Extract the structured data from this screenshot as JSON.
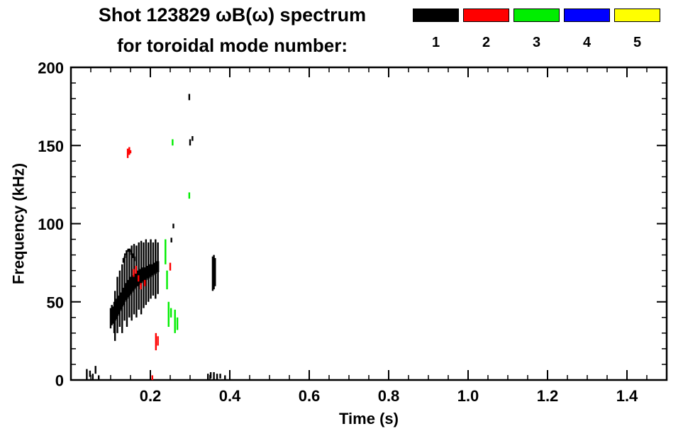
{
  "header": {
    "title_line1": "Shot 123829 ωB(ω) spectrum",
    "title_line2": "for toroidal mode number:"
  },
  "chart_data": {
    "type": "scatter",
    "title": "Shot 123829 ωB(ω) spectrum for toroidal mode number: 1 2 3 4 5",
    "xlabel": "Time (s)",
    "ylabel": "Frequency (kHz)",
    "xlim": [
      0,
      1.5
    ],
    "ylim": [
      0,
      200
    ],
    "xticks": {
      "values": [
        0.2,
        0.4,
        0.6,
        0.8,
        1.0,
        1.2,
        1.4
      ],
      "labels": [
        "0.2",
        "0.4",
        "0.6",
        "0.8",
        "1.0",
        "1.2",
        "1.4"
      ]
    },
    "yticks": {
      "values": [
        0,
        50,
        100,
        150,
        200
      ],
      "labels": [
        "0",
        "50",
        "100",
        "150",
        "200"
      ]
    },
    "x_minor_step": 0.05,
    "y_minor_step": 10,
    "grid": false,
    "background": "#ffffff",
    "axis_color": "#000000",
    "legend": {
      "position": "top-right",
      "entries": [
        {
          "label": "1",
          "color": "#000000"
        },
        {
          "label": "2",
          "color": "#ff0000"
        },
        {
          "label": "3",
          "color": "#00ee00"
        },
        {
          "label": "4",
          "color": "#0000ff"
        },
        {
          "label": "5",
          "color": "#ffff00"
        }
      ]
    },
    "series": [
      {
        "name": "toroidal mode 1",
        "color": "#000000",
        "segments": [
          [
            0.1,
            33,
            46
          ],
          [
            0.103,
            35,
            48
          ],
          [
            0.106,
            36,
            47
          ],
          [
            0.109,
            30,
            50
          ],
          [
            0.112,
            38,
            50
          ],
          [
            0.115,
            39,
            52
          ],
          [
            0.118,
            41,
            53
          ],
          [
            0.121,
            42,
            54
          ],
          [
            0.124,
            44,
            55
          ],
          [
            0.127,
            45,
            56
          ],
          [
            0.13,
            47,
            58
          ],
          [
            0.133,
            48,
            59
          ],
          [
            0.136,
            50,
            61
          ],
          [
            0.139,
            51,
            62
          ],
          [
            0.142,
            52,
            63
          ],
          [
            0.145,
            53,
            64
          ],
          [
            0.148,
            54,
            65
          ],
          [
            0.151,
            55,
            66
          ],
          [
            0.154,
            56,
            66
          ],
          [
            0.157,
            57,
            67
          ],
          [
            0.16,
            58,
            68
          ],
          [
            0.163,
            59,
            68
          ],
          [
            0.166,
            60,
            69
          ],
          [
            0.169,
            60,
            70
          ],
          [
            0.172,
            61,
            70
          ],
          [
            0.175,
            62,
            71
          ],
          [
            0.178,
            62,
            71
          ],
          [
            0.181,
            63,
            72
          ],
          [
            0.184,
            63,
            72
          ],
          [
            0.187,
            64,
            72
          ],
          [
            0.19,
            64,
            73
          ],
          [
            0.193,
            65,
            73
          ],
          [
            0.196,
            65,
            73
          ],
          [
            0.199,
            66,
            74
          ],
          [
            0.202,
            66,
            74
          ],
          [
            0.205,
            67,
            74
          ],
          [
            0.208,
            67,
            75
          ],
          [
            0.211,
            68,
            75
          ],
          [
            0.214,
            68,
            75
          ],
          [
            0.217,
            69,
            76
          ],
          [
            0.22,
            69,
            76
          ],
          [
            0.111,
            25,
            57
          ],
          [
            0.117,
            30,
            66
          ],
          [
            0.123,
            34,
            70
          ],
          [
            0.129,
            30,
            74
          ],
          [
            0.135,
            38,
            79
          ],
          [
            0.141,
            34,
            82
          ],
          [
            0.147,
            40,
            84
          ],
          [
            0.153,
            38,
            86
          ],
          [
            0.159,
            42,
            87
          ],
          [
            0.165,
            40,
            86
          ],
          [
            0.171,
            45,
            88
          ],
          [
            0.177,
            42,
            89
          ],
          [
            0.183,
            46,
            88
          ],
          [
            0.189,
            48,
            90
          ],
          [
            0.195,
            50,
            88
          ],
          [
            0.201,
            52,
            90
          ],
          [
            0.207,
            54,
            88
          ],
          [
            0.213,
            52,
            90
          ],
          [
            0.219,
            55,
            88
          ],
          [
            0.132,
            75,
            78
          ],
          [
            0.136,
            78,
            81
          ],
          [
            0.14,
            80,
            83
          ],
          [
            0.144,
            82,
            84
          ],
          [
            0.148,
            82,
            84
          ],
          [
            0.152,
            80,
            83
          ],
          [
            0.156,
            78,
            81
          ],
          [
            0.16,
            76,
            79
          ],
          [
            0.357,
            57,
            79
          ],
          [
            0.36,
            58,
            80
          ],
          [
            0.363,
            60,
            78
          ],
          [
            0.298,
            179,
            183
          ],
          [
            0.3,
            150,
            154
          ],
          [
            0.306,
            153,
            156
          ],
          [
            0.253,
            88,
            91
          ],
          [
            0.258,
            97,
            100
          ],
          [
            0.04,
            0,
            7
          ],
          [
            0.048,
            2,
            6
          ],
          [
            0.055,
            0,
            4
          ],
          [
            0.062,
            4,
            9
          ],
          [
            0.07,
            0,
            3
          ],
          [
            0.345,
            0,
            4
          ],
          [
            0.352,
            1,
            5
          ],
          [
            0.36,
            0,
            5
          ],
          [
            0.368,
            0,
            4
          ],
          [
            0.376,
            1,
            4
          ],
          [
            0.388,
            0,
            3
          ]
        ]
      },
      {
        "name": "toroidal mode 2",
        "color": "#ff0000",
        "segments": [
          [
            0.143,
            142,
            148
          ],
          [
            0.147,
            144,
            149
          ],
          [
            0.15,
            145,
            147
          ],
          [
            0.158,
            66,
            71
          ],
          [
            0.164,
            68,
            73
          ],
          [
            0.17,
            63,
            67
          ],
          [
            0.176,
            58,
            62
          ],
          [
            0.186,
            60,
            64
          ],
          [
            0.214,
            19,
            30
          ],
          [
            0.219,
            22,
            28
          ],
          [
            0.25,
            70,
            75
          ],
          [
            0.205,
            0,
            3
          ]
        ]
      },
      {
        "name": "toroidal mode 3",
        "color": "#00ee00",
        "segments": [
          [
            0.238,
            74,
            90
          ],
          [
            0.242,
            58,
            70
          ],
          [
            0.246,
            34,
            50
          ],
          [
            0.252,
            40,
            46
          ],
          [
            0.262,
            30,
            45
          ],
          [
            0.268,
            32,
            40
          ],
          [
            0.298,
            116,
            120
          ],
          [
            0.256,
            150,
            154
          ]
        ]
      },
      {
        "name": "toroidal mode 4",
        "color": "#0000ff",
        "segments": []
      },
      {
        "name": "toroidal mode 5",
        "color": "#ffff00",
        "segments": []
      }
    ]
  }
}
